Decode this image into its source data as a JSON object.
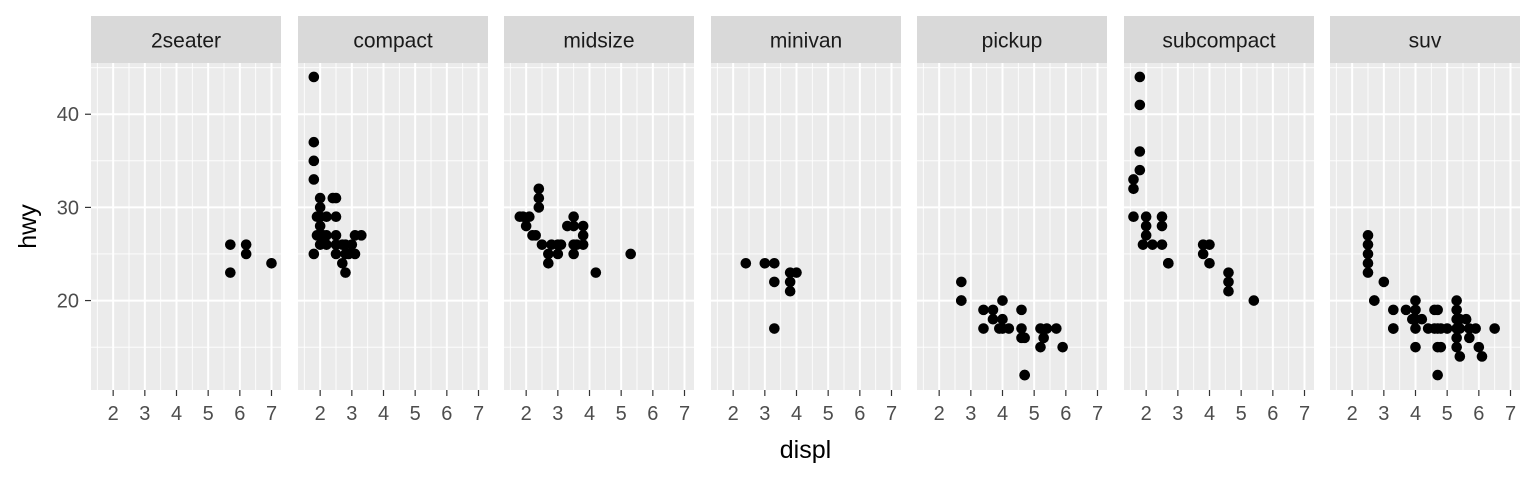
{
  "chart_data": {
    "type": "scatter",
    "facet_variable": "class",
    "xlabel": "displ",
    "ylabel": "hwy",
    "xlim": [
      1.3,
      7.3
    ],
    "ylim": [
      10.4,
      45.5
    ],
    "x_ticks": [
      "2",
      "3",
      "4",
      "5",
      "6",
      "7"
    ],
    "y_ticks": [
      "20",
      "30",
      "40"
    ],
    "grid": true,
    "colors": {
      "panel_background": "#EBEBEB",
      "strip_background": "#D9D9D9",
      "grid": "#FFFFFF",
      "point": "#000000",
      "text": "#4D4D4D",
      "title": "#000000"
    },
    "facets": [
      {
        "label": "2seater",
        "points": [
          [
            5.7,
            26
          ],
          [
            5.7,
            23
          ],
          [
            6.2,
            26
          ],
          [
            6.2,
            25
          ],
          [
            7.0,
            24
          ]
        ]
      },
      {
        "label": "compact",
        "points": [
          [
            1.8,
            44
          ],
          [
            1.8,
            37
          ],
          [
            1.8,
            35
          ],
          [
            1.8,
            33
          ],
          [
            1.9,
            29
          ],
          [
            1.9,
            27
          ],
          [
            1.8,
            25
          ],
          [
            2.0,
            31
          ],
          [
            2.0,
            30
          ],
          [
            2.0,
            29
          ],
          [
            2.0,
            28
          ],
          [
            2.0,
            26
          ],
          [
            2.1,
            27
          ],
          [
            2.2,
            29
          ],
          [
            2.2,
            26
          ],
          [
            2.2,
            27
          ],
          [
            2.4,
            31
          ],
          [
            2.5,
            31
          ],
          [
            2.5,
            29
          ],
          [
            2.5,
            27
          ],
          [
            2.5,
            26
          ],
          [
            2.5,
            25
          ],
          [
            2.7,
            24
          ],
          [
            2.7,
            26
          ],
          [
            2.8,
            26
          ],
          [
            2.8,
            25
          ],
          [
            2.8,
            23
          ],
          [
            2.9,
            25
          ],
          [
            3.0,
            26
          ],
          [
            3.1,
            27
          ],
          [
            3.1,
            25
          ],
          [
            3.3,
            27
          ]
        ]
      },
      {
        "label": "midsize",
        "points": [
          [
            1.8,
            29
          ],
          [
            1.9,
            29
          ],
          [
            2.0,
            28
          ],
          [
            2.1,
            29
          ],
          [
            2.2,
            27
          ],
          [
            2.3,
            27
          ],
          [
            2.4,
            32
          ],
          [
            2.4,
            31
          ],
          [
            2.4,
            30
          ],
          [
            2.5,
            26
          ],
          [
            2.7,
            25
          ],
          [
            2.7,
            24
          ],
          [
            2.8,
            26
          ],
          [
            3.0,
            26
          ],
          [
            3.0,
            25
          ],
          [
            3.1,
            26
          ],
          [
            3.3,
            28
          ],
          [
            3.5,
            29
          ],
          [
            3.5,
            28
          ],
          [
            3.5,
            26
          ],
          [
            3.5,
            25
          ],
          [
            3.6,
            26
          ],
          [
            3.8,
            28
          ],
          [
            3.8,
            27
          ],
          [
            3.8,
            26
          ],
          [
            4.2,
            23
          ],
          [
            5.3,
            25
          ]
        ]
      },
      {
        "label": "minivan",
        "points": [
          [
            2.4,
            24
          ],
          [
            3.0,
            24
          ],
          [
            3.3,
            24
          ],
          [
            3.3,
            22
          ],
          [
            3.3,
            17
          ],
          [
            3.8,
            23
          ],
          [
            3.8,
            22
          ],
          [
            3.8,
            21
          ],
          [
            4.0,
            23
          ]
        ]
      },
      {
        "label": "pickup",
        "points": [
          [
            2.7,
            22
          ],
          [
            2.7,
            20
          ],
          [
            2.7,
            20
          ],
          [
            3.4,
            19
          ],
          [
            3.4,
            17
          ],
          [
            3.7,
            19
          ],
          [
            3.7,
            18
          ],
          [
            3.9,
            17
          ],
          [
            4.0,
            20
          ],
          [
            4.0,
            18
          ],
          [
            4.0,
            17
          ],
          [
            4.2,
            17
          ],
          [
            4.6,
            19
          ],
          [
            4.6,
            17
          ],
          [
            4.6,
            16
          ],
          [
            4.7,
            16
          ],
          [
            4.7,
            12
          ],
          [
            4.7,
            12
          ],
          [
            5.2,
            17
          ],
          [
            5.2,
            15
          ],
          [
            5.3,
            16
          ],
          [
            5.4,
            17
          ],
          [
            5.7,
            17
          ],
          [
            5.9,
            15
          ]
        ]
      },
      {
        "label": "subcompact",
        "points": [
          [
            1.6,
            33
          ],
          [
            1.6,
            32
          ],
          [
            1.6,
            29
          ],
          [
            1.8,
            44
          ],
          [
            1.8,
            41
          ],
          [
            1.8,
            36
          ],
          [
            1.8,
            34
          ],
          [
            1.9,
            26
          ],
          [
            2.0,
            29
          ],
          [
            2.0,
            28
          ],
          [
            2.0,
            27
          ],
          [
            2.2,
            26
          ],
          [
            2.5,
            29
          ],
          [
            2.5,
            28
          ],
          [
            2.5,
            26
          ],
          [
            2.7,
            24
          ],
          [
            2.7,
            24
          ],
          [
            3.8,
            26
          ],
          [
            3.8,
            25
          ],
          [
            4.0,
            26
          ],
          [
            4.0,
            24
          ],
          [
            4.6,
            23
          ],
          [
            4.6,
            22
          ],
          [
            4.6,
            21
          ],
          [
            5.4,
            20
          ]
        ]
      },
      {
        "label": "suv",
        "points": [
          [
            2.5,
            27
          ],
          [
            2.5,
            26
          ],
          [
            2.5,
            25
          ],
          [
            2.5,
            24
          ],
          [
            2.5,
            23
          ],
          [
            2.7,
            20
          ],
          [
            2.7,
            20
          ],
          [
            3.0,
            22
          ],
          [
            3.3,
            19
          ],
          [
            3.3,
            17
          ],
          [
            3.3,
            17
          ],
          [
            3.7,
            19
          ],
          [
            3.9,
            18
          ],
          [
            4.0,
            20
          ],
          [
            4.0,
            19
          ],
          [
            4.0,
            18
          ],
          [
            4.0,
            17
          ],
          [
            4.0,
            15
          ],
          [
            4.2,
            18
          ],
          [
            4.4,
            17
          ],
          [
            4.6,
            19
          ],
          [
            4.6,
            17
          ],
          [
            4.7,
            19
          ],
          [
            4.7,
            17
          ],
          [
            4.7,
            15
          ],
          [
            4.7,
            12
          ],
          [
            4.8,
            15
          ],
          [
            4.8,
            17
          ],
          [
            5.0,
            17
          ],
          [
            5.3,
            20
          ],
          [
            5.3,
            19
          ],
          [
            5.3,
            18
          ],
          [
            5.3,
            17
          ],
          [
            5.3,
            16
          ],
          [
            5.3,
            15
          ],
          [
            5.4,
            18
          ],
          [
            5.4,
            17
          ],
          [
            5.4,
            14
          ],
          [
            5.6,
            18
          ],
          [
            5.7,
            17
          ],
          [
            5.7,
            16
          ],
          [
            5.9,
            17
          ],
          [
            6.0,
            15
          ],
          [
            6.1,
            14
          ],
          [
            6.5,
            17
          ]
        ]
      }
    ]
  }
}
